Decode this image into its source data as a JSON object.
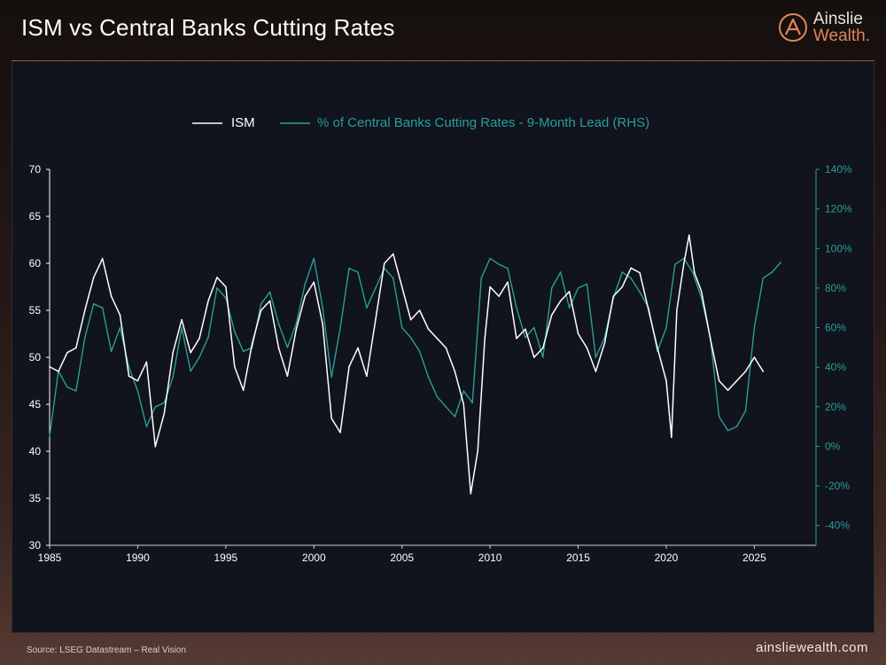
{
  "header": {
    "title": "ISM vs Central Banks Cutting Rates",
    "logo_name": "Ainslie",
    "logo_sub": "Wealth.",
    "logo_icon": "ainslie-a-icon"
  },
  "footer": {
    "source": "Source: LSEG Datastream – Real Vision",
    "url": "ainsliewealth.com"
  },
  "colors": {
    "ism": "#ffffff",
    "central_banks": "#2a9e96",
    "axis_left": "#ffffff",
    "axis_right": "#2a9e96",
    "accent": "#e0855c"
  },
  "chart_data": {
    "type": "line",
    "xlabel": "",
    "ylabel": "",
    "xlim": [
      1985,
      2028.5
    ],
    "x_ticks": [
      1985,
      1990,
      1995,
      2000,
      2005,
      2010,
      2015,
      2020,
      2025
    ],
    "ylim_left": [
      30,
      70
    ],
    "y_ticks_left": [
      30,
      35,
      40,
      45,
      50,
      55,
      60,
      65,
      70
    ],
    "ylim_right": [
      -50,
      140
    ],
    "y_ticks_right": [
      -40,
      -20,
      0,
      20,
      40,
      60,
      80,
      100,
      120,
      140
    ],
    "y_tick_labels_right": [
      "-40%",
      "-20%",
      "0%",
      "20%",
      "40%",
      "60%",
      "80%",
      "100%",
      "120%",
      "140%"
    ],
    "grid": false,
    "legend_position": "top-center",
    "series": [
      {
        "name": "ISM",
        "axis": "left",
        "x": [
          1985.0,
          1985.5,
          1986.0,
          1986.5,
          1987.0,
          1987.5,
          1988.0,
          1988.5,
          1989.0,
          1989.5,
          1990.0,
          1990.5,
          1991.0,
          1991.5,
          1992.0,
          1992.5,
          1993.0,
          1993.5,
          1994.0,
          1994.5,
          1995.0,
          1995.5,
          1996.0,
          1996.5,
          1997.0,
          1997.5,
          1998.0,
          1998.5,
          1999.0,
          1999.5,
          2000.0,
          2000.5,
          2001.0,
          2001.5,
          2002.0,
          2002.5,
          2003.0,
          2003.5,
          2004.0,
          2004.5,
          2005.0,
          2005.5,
          2006.0,
          2006.5,
          2007.0,
          2007.5,
          2008.0,
          2008.5,
          2008.9,
          2009.3,
          2009.7,
          2010.0,
          2010.5,
          2011.0,
          2011.5,
          2012.0,
          2012.5,
          2013.0,
          2013.5,
          2014.0,
          2014.5,
          2015.0,
          2015.5,
          2016.0,
          2016.5,
          2017.0,
          2017.5,
          2018.0,
          2018.5,
          2019.0,
          2019.5,
          2020.0,
          2020.3,
          2020.6,
          2021.0,
          2021.3,
          2021.6,
          2022.0,
          2022.5,
          2023.0,
          2023.5,
          2024.0,
          2024.5,
          2025.0,
          2025.5
        ],
        "values": [
          49,
          48.5,
          50.5,
          51,
          55,
          58.5,
          60.5,
          56.5,
          54.5,
          48,
          47.5,
          49.5,
          40.5,
          44,
          50.5,
          54,
          50.5,
          52,
          56,
          58.5,
          57.5,
          49,
          46.5,
          51.5,
          55,
          56,
          51,
          48,
          53,
          56.5,
          58,
          53.5,
          43.5,
          42,
          49,
          51,
          48,
          54,
          60,
          61,
          57.5,
          54,
          55,
          53,
          52,
          51,
          48.5,
          45,
          35.5,
          40,
          52,
          57.5,
          56.5,
          58,
          52,
          53,
          50,
          51,
          54.5,
          56,
          57,
          52.5,
          51,
          48.5,
          51.5,
          56.5,
          57.5,
          59.5,
          59,
          55,
          51,
          47.5,
          41.5,
          55,
          60,
          63,
          59,
          57,
          52,
          47.5,
          46.5,
          47.5,
          48.5,
          50,
          48.5
        ]
      },
      {
        "name": "% of Central Banks Cutting Rates - 9-Month Lead (RHS)",
        "axis": "right",
        "x": [
          1985.0,
          1985.5,
          1986.0,
          1986.5,
          1987.0,
          1987.5,
          1988.0,
          1988.5,
          1989.0,
          1989.5,
          1990.0,
          1990.5,
          1991.0,
          1991.5,
          1992.0,
          1992.5,
          1993.0,
          1993.5,
          1994.0,
          1994.5,
          1995.0,
          1995.5,
          1996.0,
          1996.5,
          1997.0,
          1997.5,
          1998.0,
          1998.5,
          1999.0,
          1999.5,
          2000.0,
          2000.5,
          2001.0,
          2001.5,
          2002.0,
          2002.5,
          2003.0,
          2003.5,
          2004.0,
          2004.5,
          2005.0,
          2005.5,
          2006.0,
          2006.5,
          2007.0,
          2007.5,
          2008.0,
          2008.5,
          2009.0,
          2009.5,
          2010.0,
          2010.5,
          2011.0,
          2011.5,
          2012.0,
          2012.5,
          2013.0,
          2013.5,
          2014.0,
          2014.5,
          2015.0,
          2015.5,
          2016.0,
          2016.5,
          2017.0,
          2017.5,
          2018.0,
          2018.5,
          2019.0,
          2019.5,
          2020.0,
          2020.5,
          2021.0,
          2021.5,
          2022.0,
          2022.5,
          2023.0,
          2023.5,
          2024.0,
          2024.5,
          2025.0,
          2025.5,
          2026.0,
          2026.5
        ],
        "values": [
          5,
          38,
          30,
          28,
          55,
          72,
          70,
          48,
          60,
          40,
          28,
          10,
          20,
          22,
          35,
          60,
          38,
          45,
          55,
          80,
          75,
          58,
          48,
          50,
          72,
          78,
          62,
          50,
          62,
          82,
          95,
          70,
          35,
          60,
          90,
          88,
          70,
          80,
          90,
          85,
          60,
          55,
          48,
          35,
          25,
          20,
          15,
          28,
          22,
          85,
          95,
          92,
          90,
          70,
          55,
          60,
          45,
          80,
          88,
          70,
          80,
          82,
          45,
          55,
          75,
          88,
          85,
          78,
          70,
          48,
          60,
          92,
          95,
          88,
          75,
          55,
          15,
          8,
          10,
          18,
          60,
          85,
          88,
          93
        ]
      }
    ]
  }
}
